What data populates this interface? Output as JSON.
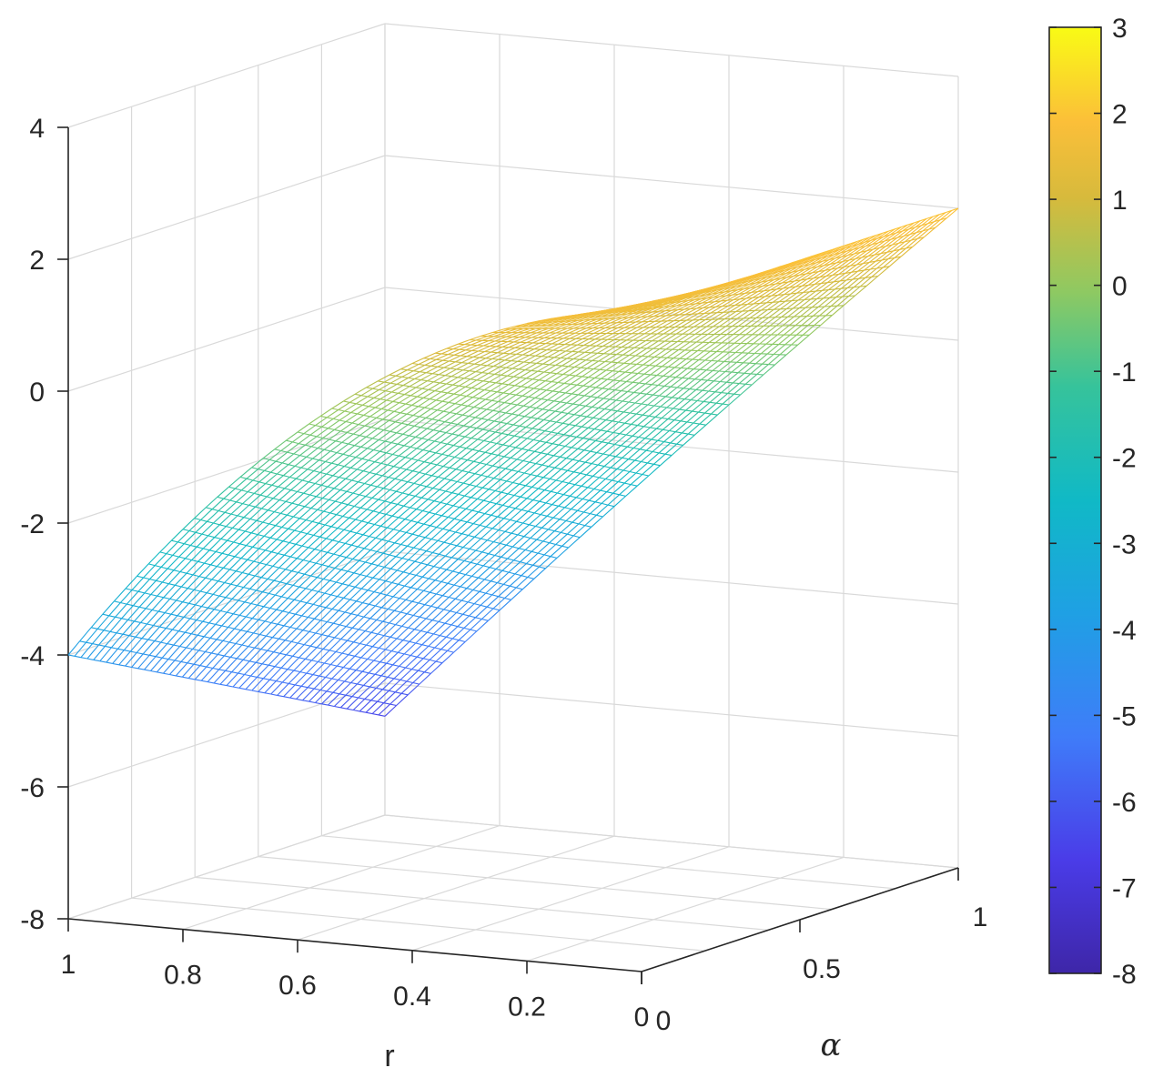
{
  "chart_data": {
    "type": "surface",
    "title": "",
    "xlabel": "r",
    "ylabel": "α",
    "zlabel": "",
    "x_ticks": [
      "1",
      "0.8",
      "0.6",
      "0.4",
      "0.2",
      "0"
    ],
    "y_ticks": [
      "0",
      "0.5",
      "1"
    ],
    "z_ticks": [
      "4",
      "2",
      "0",
      "-2",
      "-4",
      "-6",
      "-8"
    ],
    "xlim": [
      0,
      1
    ],
    "ylim": [
      0,
      1
    ],
    "zlim": [
      -8,
      4
    ],
    "grid": true,
    "colormap": "parula",
    "colorbar": {
      "ticks": [
        "3",
        "2",
        "1",
        "0",
        "-1",
        "-2",
        "-3",
        "-4",
        "-5",
        "-6",
        "-7",
        "-8"
      ],
      "range": [
        -8,
        3
      ],
      "position": "right"
    },
    "surface_samples": [
      {
        "r": 0,
        "alpha": 0,
        "z": 2.0
      },
      {
        "r": 0.4,
        "alpha": 0,
        "z": 0.9
      },
      {
        "r": 1,
        "alpha": 0,
        "z": -4.0
      },
      {
        "r": 0,
        "alpha": 1,
        "z": 2.0
      },
      {
        "r": 0.4,
        "alpha": 1,
        "z": -1.3
      },
      {
        "r": 1,
        "alpha": 1,
        "z": -6.5
      }
    ],
    "colors": [
      "#3e26a8",
      "#4771f8",
      "#1caadf",
      "#15bfae",
      "#74ca6d",
      "#e1b53b",
      "#f9f71e"
    ]
  }
}
